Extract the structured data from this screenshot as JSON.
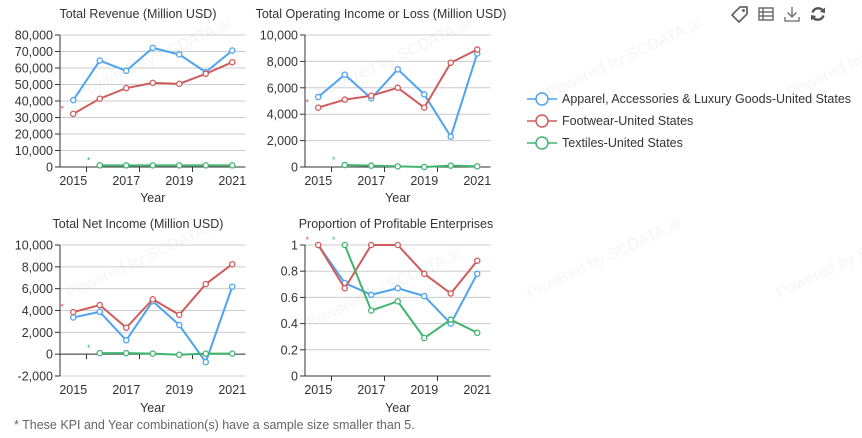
{
  "toolbar": {
    "icons": [
      "tag-icon",
      "table-icon",
      "download-icon",
      "refresh-icon"
    ]
  },
  "watermark": "Powered by SCDATA.ai",
  "footnote": "* These KPI and Year combination(s) have a sample size smaller than 5.",
  "colors": {
    "apparel": "#4ea3f0",
    "footwear": "#d05b5b",
    "textiles": "#3fb56d"
  },
  "legend": [
    {
      "label": "Apparel, Accessories & Luxury Goods-United States",
      "color": "#4ea3f0"
    },
    {
      "label": "Footwear-United States",
      "color": "#d05b5b"
    },
    {
      "label": "Textiles-United States",
      "color": "#3fb56d"
    }
  ],
  "chart_data": [
    {
      "type": "line",
      "title": "Total Revenue (Million USD)",
      "xlabel": "Year",
      "ylabel": "",
      "categories": [
        "2015",
        "2016",
        "2017",
        "2018",
        "2019",
        "2020",
        "2021"
      ],
      "x_tick_labels": [
        "2015",
        "2017",
        "2019",
        "2021"
      ],
      "ylim": [
        0,
        80000
      ],
      "y_ticks": [
        0,
        10000,
        20000,
        30000,
        40000,
        50000,
        60000,
        70000,
        80000
      ],
      "y_tick_labels": [
        "0",
        "10,000",
        "20,000",
        "30,000",
        "40,000",
        "50,000",
        "60,000",
        "70,000",
        "80,000"
      ],
      "grid": true,
      "series": [
        {
          "name": "Apparel, Accessories & Luxury Goods-United States",
          "values": [
            40500,
            64500,
            58300,
            72200,
            68200,
            57500,
            70600
          ]
        },
        {
          "name": "Footwear-United States",
          "values": [
            32200,
            41400,
            47800,
            51000,
            50400,
            56500,
            63500
          ]
        },
        {
          "name": "Textiles-United States",
          "values": [
            null,
            1000,
            1000,
            1000,
            1000,
            1000,
            1000
          ]
        }
      ],
      "small_sample_markers": [
        {
          "series": "Footwear-United States",
          "year": "2015",
          "label": "*"
        },
        {
          "series": "Textiles-United States",
          "year": "2016",
          "label": "*"
        }
      ]
    },
    {
      "type": "line",
      "title": "Total Operating Income or Loss (Million USD)",
      "xlabel": "Year",
      "ylabel": "",
      "categories": [
        "2015",
        "2016",
        "2017",
        "2018",
        "2019",
        "2020",
        "2021"
      ],
      "x_tick_labels": [
        "2015",
        "2017",
        "2019",
        "2021"
      ],
      "ylim": [
        0,
        10000
      ],
      "y_ticks": [
        0,
        2000,
        4000,
        6000,
        8000,
        10000
      ],
      "y_tick_labels": [
        "0",
        "2,000",
        "4,000",
        "6,000",
        "8,000",
        "10,000"
      ],
      "grid": true,
      "series": [
        {
          "name": "Apparel, Accessories & Luxury Goods-United States",
          "values": [
            5300,
            7000,
            5200,
            7400,
            5500,
            2300,
            8600
          ]
        },
        {
          "name": "Footwear-United States",
          "values": [
            4500,
            5100,
            5400,
            6000,
            4500,
            7900,
            8900
          ]
        },
        {
          "name": "Textiles-United States",
          "values": [
            null,
            150,
            100,
            50,
            0,
            100,
            50
          ]
        }
      ],
      "small_sample_markers": [
        {
          "series": "Footwear-United States",
          "year": "2015",
          "label": "*"
        },
        {
          "series": "Textiles-United States",
          "year": "2016",
          "label": "*"
        }
      ]
    },
    {
      "type": "line",
      "title": "Total Net Income (Million USD)",
      "xlabel": "Year",
      "ylabel": "",
      "categories": [
        "2015",
        "2016",
        "2017",
        "2018",
        "2019",
        "2020",
        "2021"
      ],
      "x_tick_labels": [
        "2015",
        "2017",
        "2019",
        "2021"
      ],
      "ylim": [
        -2000,
        10000
      ],
      "y_ticks": [
        -2000,
        0,
        2000,
        4000,
        6000,
        8000,
        10000
      ],
      "y_tick_labels": [
        "-2,000",
        "0",
        "2,000",
        "4,000",
        "6,000",
        "8,000",
        "10,000"
      ],
      "grid": true,
      "series": [
        {
          "name": "Apparel, Accessories & Luxury Goods-United States",
          "values": [
            3360,
            3880,
            1270,
            4850,
            2670,
            -730,
            6180
          ]
        },
        {
          "name": "Footwear-United States",
          "values": [
            3850,
            4500,
            2420,
            5030,
            3600,
            6420,
            8240
          ]
        },
        {
          "name": "Textiles-United States",
          "values": [
            null,
            100,
            100,
            50,
            -50,
            50,
            50
          ]
        }
      ],
      "small_sample_markers": [
        {
          "series": "Footwear-United States",
          "year": "2015",
          "label": "*"
        },
        {
          "series": "Textiles-United States",
          "year": "2016",
          "label": "*"
        }
      ]
    },
    {
      "type": "line",
      "title": "Proportion of Profitable Enterprises",
      "xlabel": "Year",
      "ylabel": "",
      "categories": [
        "2015",
        "2016",
        "2017",
        "2018",
        "2019",
        "2020",
        "2021"
      ],
      "x_tick_labels": [
        "2015",
        "2017",
        "2019",
        "2021"
      ],
      "ylim": [
        0,
        1
      ],
      "y_ticks": [
        0,
        0.2,
        0.4,
        0.6,
        0.8,
        1
      ],
      "y_tick_labels": [
        "0",
        "0.2",
        "0.4",
        "0.6",
        "0.8",
        "1"
      ],
      "grid": true,
      "series": [
        {
          "name": "Apparel, Accessories & Luxury Goods-United States",
          "values": [
            1,
            0.71,
            0.62,
            0.67,
            0.61,
            0.4,
            0.78
          ]
        },
        {
          "name": "Footwear-United States",
          "values": [
            1,
            0.67,
            1,
            1,
            0.78,
            0.63,
            0.88
          ]
        },
        {
          "name": "Textiles-United States",
          "values": [
            null,
            1,
            0.5,
            0.57,
            0.29,
            0.43,
            0.33
          ]
        }
      ],
      "small_sample_markers": [
        {
          "series": "Footwear-United States",
          "year": "2015",
          "label": "*"
        },
        {
          "series": "Textiles-United States",
          "year": "2016",
          "label": "*"
        }
      ]
    }
  ]
}
